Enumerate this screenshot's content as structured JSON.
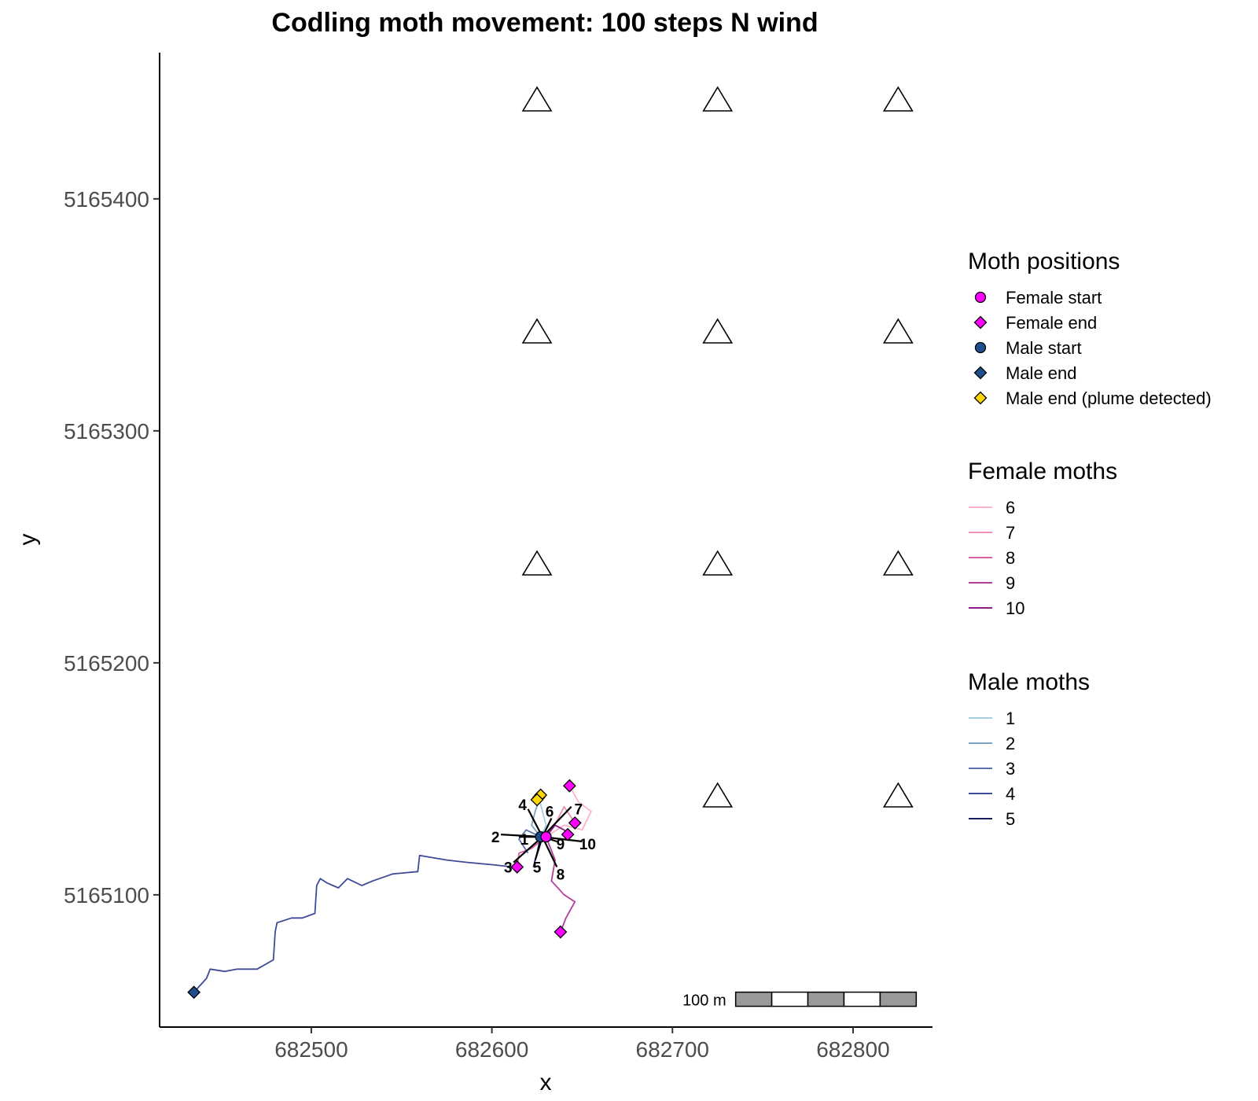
{
  "chart_data": {
    "type": "scatter",
    "title": "Codling moth movement: 100 steps N wind",
    "xlabel": "x",
    "ylabel": "y",
    "xlim": [
      682416,
      682844
    ],
    "ylim": [
      5165043,
      5165463
    ],
    "x_ticks": [
      682500,
      682600,
      682700,
      682800
    ],
    "y_ticks": [
      5165100,
      5165200,
      5165300,
      5165400
    ],
    "x_tick_labels": [
      "682500",
      "682600",
      "682700",
      "682800"
    ],
    "y_tick_labels": [
      "5165100",
      "5165200",
      "5165300",
      "5165400"
    ],
    "grid": false,
    "traps": {
      "marker": "triangle-open",
      "points": [
        {
          "x": 682625,
          "y": 5165443
        },
        {
          "x": 682725,
          "y": 5165443
        },
        {
          "x": 682825,
          "y": 5165443
        },
        {
          "x": 682625,
          "y": 5165343
        },
        {
          "x": 682725,
          "y": 5165343
        },
        {
          "x": 682825,
          "y": 5165343
        },
        {
          "x": 682625,
          "y": 5165243
        },
        {
          "x": 682725,
          "y": 5165243
        },
        {
          "x": 682825,
          "y": 5165243
        },
        {
          "x": 682725,
          "y": 5165143
        },
        {
          "x": 682825,
          "y": 5165143
        }
      ]
    },
    "male_tracks": [
      {
        "name": "1",
        "color": "#a6cee3",
        "path": [
          [
            682627,
            5165125
          ],
          [
            682630,
            5165130
          ],
          [
            682628,
            5165136
          ],
          [
            682626,
            5165142
          ]
        ]
      },
      {
        "name": "2",
        "color": "#7ba4c4",
        "path": [
          [
            682627,
            5165125
          ],
          [
            682622,
            5165130
          ],
          [
            682624,
            5165136
          ],
          [
            682627,
            5165143
          ]
        ]
      },
      {
        "name": "3",
        "color": "#5a73b0",
        "path": [
          [
            682627,
            5165125
          ],
          [
            682619,
            5165128
          ],
          [
            682615,
            5165124
          ],
          [
            682620,
            5165118
          ]
        ]
      },
      {
        "name": "4",
        "color": "#3d4a96",
        "path": [
          [
            682612,
            5165112
          ],
          [
            682600,
            5165113
          ],
          [
            682586,
            5165114
          ],
          [
            682575,
            5165115
          ],
          [
            682560,
            5165117
          ],
          [
            682559,
            5165110
          ],
          [
            682545,
            5165109
          ],
          [
            682534,
            5165106
          ],
          [
            682528,
            5165104
          ],
          [
            682520,
            5165107
          ],
          [
            682515,
            5165103
          ],
          [
            682509,
            5165105
          ],
          [
            682505,
            5165107
          ],
          [
            682503,
            5165104
          ],
          [
            682502,
            5165092
          ],
          [
            682495,
            5165090
          ],
          [
            682489,
            5165090
          ],
          [
            682481,
            5165088
          ],
          [
            682480,
            5165084
          ],
          [
            682479,
            5165072
          ],
          [
            682470,
            5165068
          ],
          [
            682459,
            5165068
          ],
          [
            682452,
            5165067
          ],
          [
            682444,
            5165068
          ],
          [
            682442,
            5165064
          ],
          [
            682435,
            5165058
          ]
        ]
      },
      {
        "name": "5",
        "color": "#1b1f5e",
        "path": [
          [
            682627,
            5165125
          ],
          [
            682625,
            5165118
          ],
          [
            682623,
            5165112
          ]
        ]
      }
    ],
    "female_tracks": [
      {
        "name": "6",
        "color": "#fbb4c8",
        "path": [
          [
            682630,
            5165125
          ],
          [
            682640,
            5165130
          ],
          [
            682650,
            5165128
          ],
          [
            682655,
            5165136
          ],
          [
            682648,
            5165140
          ],
          [
            682643,
            5165147
          ]
        ]
      },
      {
        "name": "7",
        "color": "#ef8fba",
        "path": [
          [
            682630,
            5165125
          ],
          [
            682636,
            5165132
          ],
          [
            682640,
            5165138
          ],
          [
            682646,
            5165131
          ]
        ]
      },
      {
        "name": "8",
        "color": "#d8609f",
        "path": [
          [
            682630,
            5165125
          ],
          [
            682622,
            5165120
          ],
          [
            682615,
            5165118
          ],
          [
            682614,
            5165112
          ]
        ]
      },
      {
        "name": "9",
        "color": "#b23d9a",
        "path": [
          [
            682630,
            5165125
          ],
          [
            682635,
            5165115
          ],
          [
            682633,
            5165106
          ],
          [
            682640,
            5165100
          ],
          [
            682646,
            5165097
          ],
          [
            682641,
            5165090
          ],
          [
            682638,
            5165084
          ]
        ]
      },
      {
        "name": "10",
        "color": "#8b1a85",
        "path": [
          [
            682630,
            5165125
          ],
          [
            682635,
            5165130
          ],
          [
            682640,
            5165128
          ],
          [
            682642,
            5165126
          ]
        ]
      }
    ],
    "female_start": [
      {
        "x": 682630,
        "y": 5165125
      }
    ],
    "female_end": [
      {
        "x": 682643,
        "y": 5165147
      },
      {
        "x": 682646,
        "y": 5165131
      },
      {
        "x": 682614,
        "y": 5165112
      },
      {
        "x": 682638,
        "y": 5165084
      },
      {
        "x": 682642,
        "y": 5165126
      }
    ],
    "male_start": [
      {
        "x": 682627,
        "y": 5165125
      }
    ],
    "male_end": [
      {
        "x": 682435,
        "y": 5165058
      }
    ],
    "male_end_plume": [
      {
        "x": 682626,
        "y": 5165142
      },
      {
        "x": 682627,
        "y": 5165143
      },
      {
        "x": 682625,
        "y": 5165141
      }
    ],
    "moth_labels": [
      {
        "text": "1",
        "x": 682618,
        "y": 5165124
      },
      {
        "text": "2",
        "x": 682602,
        "y": 5165125
      },
      {
        "text": "3",
        "x": 682609,
        "y": 5165112
      },
      {
        "text": "4",
        "x": 682617,
        "y": 5165139
      },
      {
        "text": "5",
        "x": 682625,
        "y": 5165112
      },
      {
        "text": "6",
        "x": 682632,
        "y": 5165136
      },
      {
        "text": "7",
        "x": 682648,
        "y": 5165137
      },
      {
        "text": "8",
        "x": 682638,
        "y": 5165109
      },
      {
        "text": "9",
        "x": 682638,
        "y": 5165122
      },
      {
        "text": "10",
        "x": 682653,
        "y": 5165122
      }
    ],
    "label_spokes": {
      "center": {
        "x": 682628,
        "y": 5165125
      },
      "ends": [
        [
          682615,
          5165125
        ],
        [
          682605,
          5165126
        ],
        [
          682612,
          5165114
        ],
        [
          682620,
          5165137
        ],
        [
          682624,
          5165115
        ],
        [
          682633,
          5165133
        ],
        [
          682644,
          5165138
        ],
        [
          682636,
          5165112
        ],
        [
          682636,
          5165123
        ],
        [
          682650,
          5165123
        ]
      ]
    },
    "scale_bar": {
      "label": "100 m",
      "x0": 682735,
      "x1": 682835,
      "y": 5165055,
      "segments": 5
    },
    "legend": {
      "placement": "right",
      "groups": [
        {
          "title": "Moth positions",
          "items": [
            {
              "label": "Female start",
              "marker": "circle",
              "fill": "#ff00ff"
            },
            {
              "label": "Female end",
              "marker": "diamond",
              "fill": "#ff00ff"
            },
            {
              "label": "Male start",
              "marker": "circle",
              "fill": "#1f4e8c"
            },
            {
              "label": "Male end",
              "marker": "diamond",
              "fill": "#1f4e8c"
            },
            {
              "label": "Male end (plume detected)",
              "marker": "diamond",
              "fill": "#ffd700"
            }
          ]
        },
        {
          "title": "Female moths",
          "items": [
            {
              "label": "6",
              "marker": "line",
              "fill": "#fbb4c8"
            },
            {
              "label": "7",
              "marker": "line",
              "fill": "#ef8fba"
            },
            {
              "label": "8",
              "marker": "line",
              "fill": "#d8609f"
            },
            {
              "label": "9",
              "marker": "line",
              "fill": "#b23d9a"
            },
            {
              "label": "10",
              "marker": "line",
              "fill": "#8b1a85"
            }
          ]
        },
        {
          "title": "Male moths",
          "items": [
            {
              "label": "1",
              "marker": "line",
              "fill": "#a6cee3"
            },
            {
              "label": "2",
              "marker": "line",
              "fill": "#7ba4c4"
            },
            {
              "label": "3",
              "marker": "line",
              "fill": "#5a73b0"
            },
            {
              "label": "4",
              "marker": "line",
              "fill": "#3d4a96"
            },
            {
              "label": "5",
              "marker": "line",
              "fill": "#1b1f5e"
            }
          ]
        }
      ]
    }
  }
}
